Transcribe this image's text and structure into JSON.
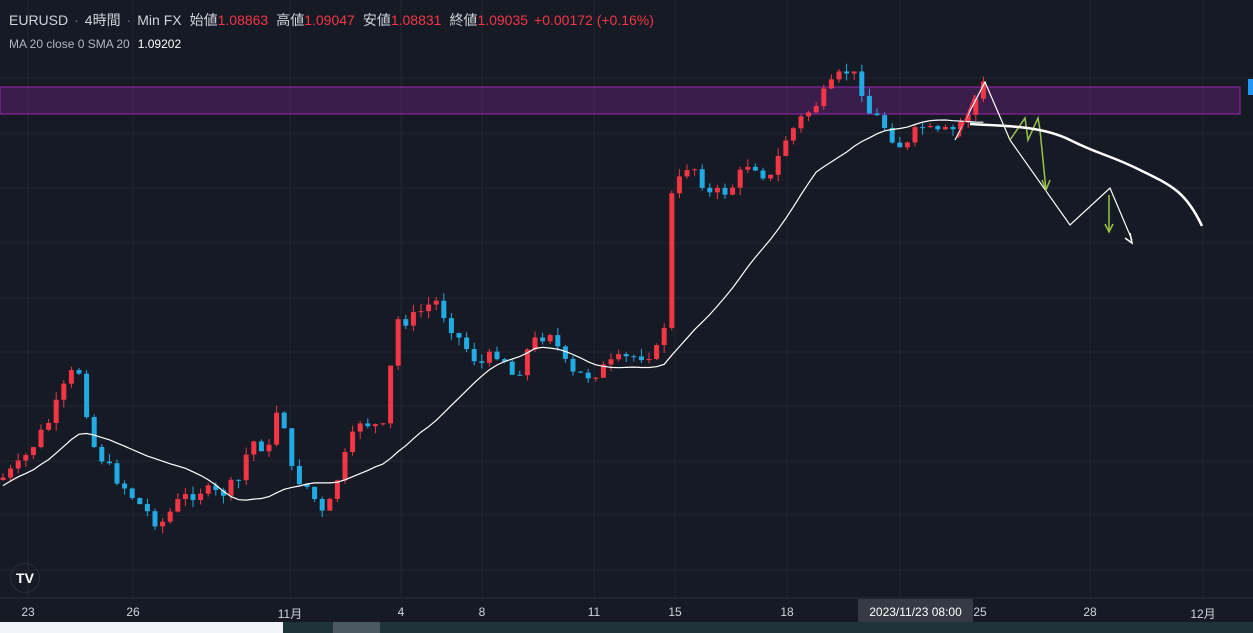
{
  "legend": {
    "symbol": "EURUSD",
    "interval": "4時間",
    "source": "Min FX",
    "open_label": "始値",
    "open": "1.08863",
    "high_label": "高値",
    "high": "1.09047",
    "low_label": "安値",
    "low": "1.08831",
    "close_label": "終値",
    "close": "1.09035",
    "change": "+0.00172 (+0.16%)"
  },
  "indicator": {
    "label": "MA 20 close 0 SMA 20",
    "value": "1.09202"
  },
  "time_axis": [
    "23",
    "26",
    "11月",
    "4",
    "8",
    "11",
    "15",
    "18",
    "25",
    "28",
    "12月"
  ],
  "crosshair_time": "2023/11/23   08:00",
  "logo": "TV",
  "colors": {
    "up": "#f23645",
    "down": "#22abe3",
    "zone": "#9c27b0",
    "background": "#161a25"
  }
}
